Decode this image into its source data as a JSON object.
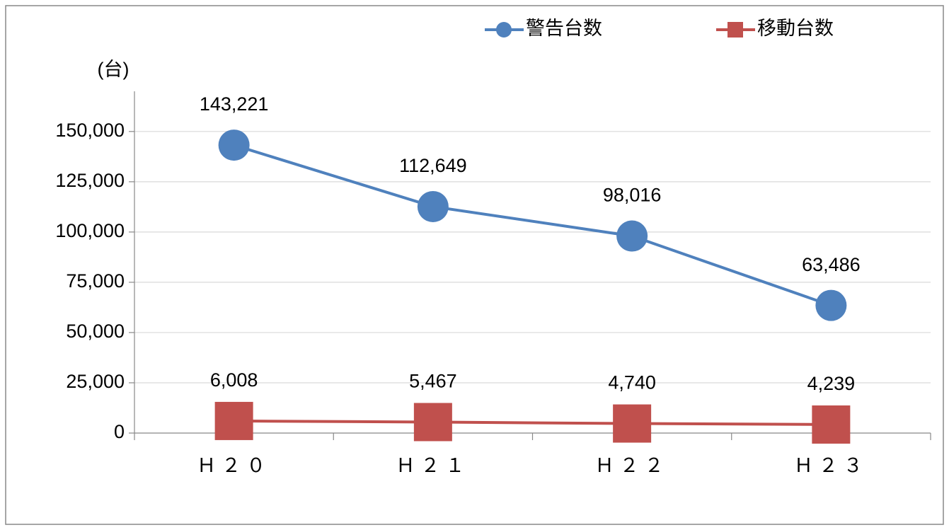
{
  "chart_data": {
    "type": "line",
    "axis_title": "(台)",
    "categories": [
      "Ｈ２０",
      "Ｈ２１",
      "Ｈ２２",
      "Ｈ２３"
    ],
    "series": [
      {
        "name": "警告台数",
        "color": "#4f81bd",
        "marker": "circle",
        "values": [
          143221,
          112649,
          98016,
          63486
        ],
        "value_labels": [
          "143,221",
          "112,649",
          "98,016",
          "63,486"
        ]
      },
      {
        "name": "移動台数",
        "color": "#c0504d",
        "marker": "square",
        "values": [
          6008,
          5467,
          4740,
          4239
        ],
        "value_labels": [
          "6,008",
          "5,467",
          "4,740",
          "4,239"
        ]
      }
    ],
    "ylim": [
      0,
      170000
    ],
    "yticks": [
      0,
      {
        "value": 25000,
        "label": "25,000"
      },
      {
        "value": 50000,
        "label": "50,000"
      },
      {
        "value": 75000,
        "label": "75,000"
      },
      {
        "value": 100000,
        "label": "100,000"
      },
      {
        "value": 125000,
        "label": "125,000"
      },
      {
        "value": 150000,
        "label": "150,000"
      }
    ],
    "grid": true,
    "legend": "top-right"
  }
}
